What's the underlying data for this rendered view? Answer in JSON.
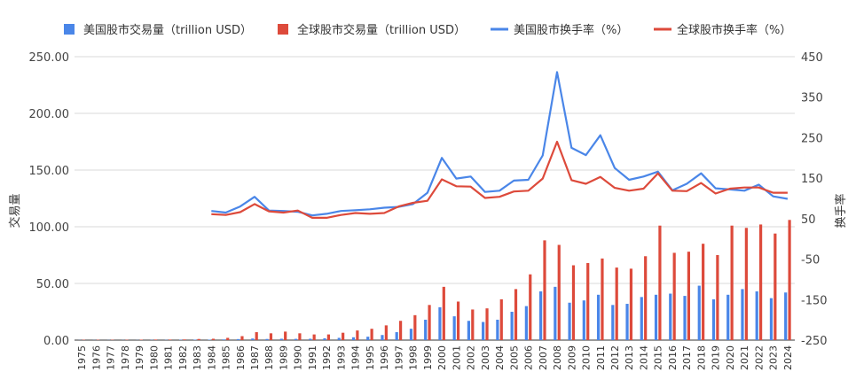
{
  "chart_data": {
    "type": "bar+line",
    "title": "",
    "colors": {
      "us": "#4a86e8",
      "global": "#dd4a3b"
    },
    "categories": [
      "1975",
      "1976",
      "1977",
      "1978",
      "1979",
      "1980",
      "1981",
      "1982",
      "1983",
      "1984",
      "1985",
      "1986",
      "1987",
      "1988",
      "1989",
      "1990",
      "1991",
      "1992",
      "1993",
      "1994",
      "1995",
      "1996",
      "1997",
      "1998",
      "1999",
      "2000",
      "2001",
      "2002",
      "2003",
      "2004",
      "2005",
      "2006",
      "2007",
      "2008",
      "2009",
      "2010",
      "2011",
      "2012",
      "2013",
      "2014",
      "2015",
      "2016",
      "2017",
      "2018",
      "2019",
      "2020",
      "2021",
      "2022",
      "2023",
      "2024"
    ],
    "left_axis": {
      "label": "交易量",
      "ylim": [
        0,
        250
      ],
      "ticks": [
        "0.00",
        "50.00",
        "100.00",
        "150.00",
        "200.00",
        "250.00"
      ]
    },
    "right_axis": {
      "label": "换手率",
      "ylim": [
        -250,
        450
      ],
      "ticks": [
        "-250",
        "-150",
        "-50",
        "50",
        "150",
        "250",
        "350",
        "450"
      ]
    },
    "legend": [
      "美国股市交易量（trillion USD）",
      "全球股市交易量（trillion USD）",
      "美国股市换手率（%）",
      "全球股市换手率（%）"
    ],
    "legend_position": "top",
    "bar_series": [
      {
        "name": "美国股市交易量（trillion USD）",
        "color": "#4a86e8",
        "values": [
          0.1,
          0.1,
          0.1,
          0.1,
          0.1,
          0.2,
          0.2,
          0.3,
          0.4,
          0.4,
          0.6,
          0.9,
          1.4,
          1.0,
          1.2,
          1.1,
          1.2,
          1.6,
          2.0,
          2.5,
          3.0,
          4.5,
          7.0,
          10.0,
          18.0,
          29.0,
          21.0,
          17.0,
          16.0,
          18.0,
          25.0,
          30.0,
          43.0,
          47.0,
          33.0,
          35.0,
          40.0,
          31.0,
          32.0,
          38.0,
          40.0,
          41.0,
          39.0,
          48.0,
          36.0,
          40.0,
          45.0,
          43.0,
          37.0,
          42.0
        ]
      },
      {
        "name": "全球股市交易量（trillion USD）",
        "color": "#dd4a3b",
        "values": [
          0.3,
          0.3,
          0.3,
          0.3,
          0.4,
          0.5,
          0.5,
          0.6,
          1.0,
          1.2,
          2.0,
          3.5,
          7.0,
          6.0,
          7.5,
          6.0,
          5.0,
          5.0,
          6.5,
          8.5,
          10.0,
          13.0,
          17.0,
          22.0,
          31.0,
          47.0,
          34.0,
          27.0,
          28.0,
          36.0,
          45.0,
          58.0,
          88.0,
          84.0,
          66.0,
          68.0,
          72.0,
          64.0,
          63.0,
          74.0,
          101.0,
          77.0,
          78.0,
          85.0,
          75.0,
          101.0,
          99.0,
          102.0,
          94.0,
          106.0
        ]
      }
    ],
    "line_series": [
      {
        "name": "美国股市换手率（%）",
        "color": "#4a86e8",
        "x": [
          "1984",
          "1985",
          "1986",
          "1987",
          "1988",
          "1989",
          "1990",
          "1991",
          "1992",
          "1993",
          "1994",
          "1995",
          "1996",
          "1997",
          "1998",
          "1999",
          "2000",
          "2001",
          "2002",
          "2003",
          "2004",
          "2005",
          "2006",
          "2007",
          "2008",
          "2009",
          "2010",
          "2011",
          "2012",
          "2013",
          "2014",
          "2015",
          "2016",
          "2017",
          "2018",
          "2019",
          "2020",
          "2021",
          "2022",
          "2023",
          "2024"
        ],
        "values": [
          69,
          65,
          80,
          104,
          70,
          69,
          67,
          58,
          62,
          69,
          71,
          73,
          77,
          79,
          86,
          114,
          200,
          149,
          154,
          116,
          119,
          144,
          146,
          206,
          412,
          225,
          207,
          256,
          175,
          146,
          154,
          166,
          120,
          136,
          162,
          125,
          122,
          119,
          134,
          105,
          99
        ]
      },
      {
        "name": "全球股市换手率（%）",
        "color": "#dd4a3b",
        "x": [
          "1984",
          "1985",
          "1986",
          "1987",
          "1988",
          "1989",
          "1990",
          "1991",
          "1992",
          "1993",
          "1994",
          "1995",
          "1996",
          "1997",
          "1998",
          "1999",
          "2000",
          "2001",
          "2002",
          "2003",
          "2004",
          "2005",
          "2006",
          "2007",
          "2008",
          "2009",
          "2010",
          "2011",
          "2012",
          "2013",
          "2014",
          "2015",
          "2016",
          "2017",
          "2018",
          "2019",
          "2020",
          "2021",
          "2022",
          "2023",
          "2024"
        ],
        "values": [
          61,
          59,
          66,
          86,
          68,
          65,
          70,
          52,
          52,
          59,
          64,
          62,
          64,
          80,
          89,
          94,
          147,
          130,
          129,
          101,
          104,
          117,
          119,
          149,
          240,
          145,
          136,
          153,
          126,
          119,
          124,
          162,
          119,
          118,
          138,
          112,
          124,
          127,
          127,
          114,
          114
        ]
      }
    ]
  }
}
